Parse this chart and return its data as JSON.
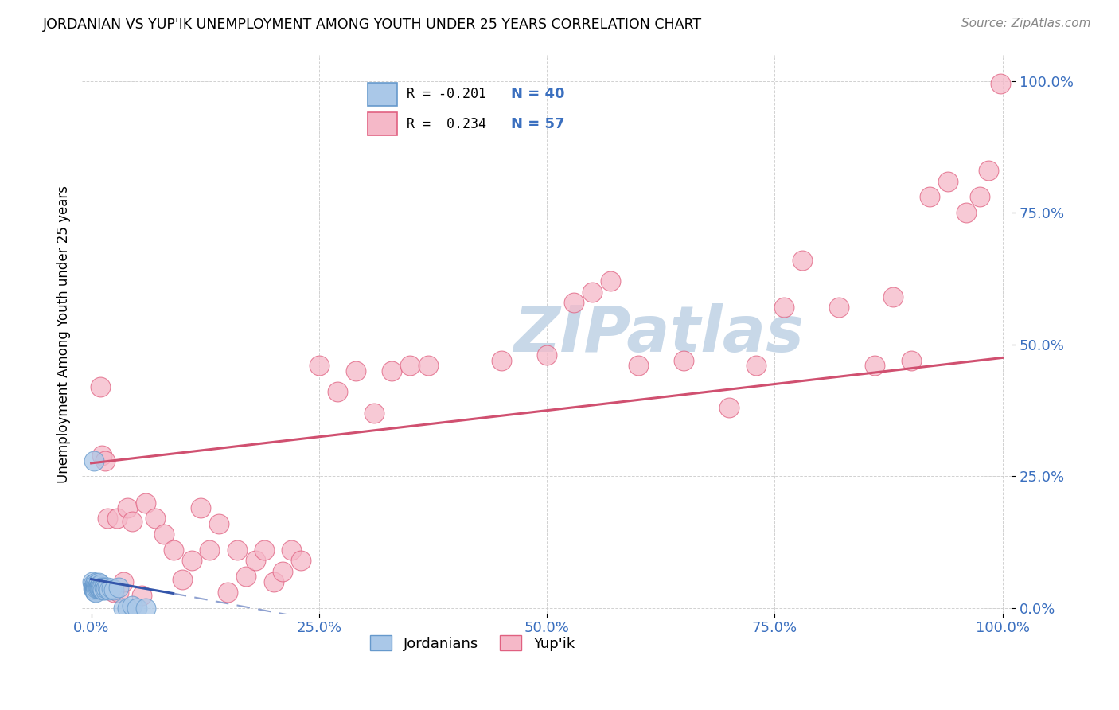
{
  "title": "JORDANIAN VS YUP'IK UNEMPLOYMENT AMONG YOUTH UNDER 25 YEARS CORRELATION CHART",
  "source": "Source: ZipAtlas.com",
  "ylabel": "Unemployment Among Youth under 25 years",
  "xlim": [
    -0.01,
    1.01
  ],
  "ylim": [
    -0.01,
    1.05
  ],
  "xticks": [
    0.0,
    0.25,
    0.5,
    0.75,
    1.0
  ],
  "yticks": [
    0.0,
    0.25,
    0.5,
    0.75,
    1.0
  ],
  "xticklabels": [
    "0.0%",
    "25.0%",
    "50.0%",
    "75.0%",
    "100.0%"
  ],
  "yticklabels": [
    "0.0%",
    "25.0%",
    "50.0%",
    "75.0%",
    "100.0%"
  ],
  "blue_face_color": "#aac8e8",
  "blue_edge_color": "#6699cc",
  "pink_face_color": "#f5b8c8",
  "pink_edge_color": "#e06080",
  "blue_line_color": "#3355aa",
  "pink_line_color": "#d05070",
  "watermark_color": "#c8d8e8",
  "blue_R": "-0.201",
  "blue_N": "40",
  "pink_R": "0.234",
  "pink_N": "57",
  "blue_points_x": [
    0.001,
    0.002,
    0.002,
    0.003,
    0.003,
    0.003,
    0.004,
    0.004,
    0.004,
    0.005,
    0.005,
    0.005,
    0.005,
    0.006,
    0.006,
    0.007,
    0.007,
    0.008,
    0.008,
    0.009,
    0.009,
    0.01,
    0.01,
    0.011,
    0.012,
    0.013,
    0.014,
    0.015,
    0.016,
    0.018,
    0.02,
    0.022,
    0.025,
    0.03,
    0.035,
    0.04,
    0.045,
    0.05,
    0.06,
    0.003
  ],
  "blue_points_y": [
    0.05,
    0.045,
    0.038,
    0.042,
    0.038,
    0.035,
    0.04,
    0.035,
    0.032,
    0.048,
    0.038,
    0.035,
    0.03,
    0.045,
    0.038,
    0.042,
    0.038,
    0.048,
    0.04,
    0.042,
    0.038,
    0.045,
    0.038,
    0.04,
    0.038,
    0.035,
    0.04,
    0.035,
    0.038,
    0.04,
    0.035,
    0.038,
    0.035,
    0.04,
    0.0,
    0.0,
    0.005,
    0.0,
    0.0,
    0.28
  ],
  "pink_points_x": [
    0.01,
    0.012,
    0.015,
    0.018,
    0.025,
    0.028,
    0.03,
    0.035,
    0.04,
    0.045,
    0.055,
    0.06,
    0.07,
    0.08,
    0.09,
    0.1,
    0.11,
    0.12,
    0.13,
    0.14,
    0.15,
    0.16,
    0.17,
    0.18,
    0.19,
    0.2,
    0.21,
    0.22,
    0.23,
    0.25,
    0.27,
    0.29,
    0.31,
    0.33,
    0.35,
    0.37,
    0.45,
    0.5,
    0.53,
    0.55,
    0.57,
    0.6,
    0.65,
    0.7,
    0.73,
    0.76,
    0.78,
    0.82,
    0.86,
    0.88,
    0.9,
    0.92,
    0.94,
    0.96,
    0.975,
    0.985,
    0.998
  ],
  "pink_points_y": [
    0.42,
    0.29,
    0.28,
    0.17,
    0.03,
    0.17,
    0.03,
    0.05,
    0.19,
    0.165,
    0.025,
    0.2,
    0.17,
    0.14,
    0.11,
    0.055,
    0.09,
    0.19,
    0.11,
    0.16,
    0.03,
    0.11,
    0.06,
    0.09,
    0.11,
    0.05,
    0.07,
    0.11,
    0.09,
    0.46,
    0.41,
    0.45,
    0.37,
    0.45,
    0.46,
    0.46,
    0.47,
    0.48,
    0.58,
    0.6,
    0.62,
    0.46,
    0.47,
    0.38,
    0.46,
    0.57,
    0.66,
    0.57,
    0.46,
    0.59,
    0.47,
    0.78,
    0.81,
    0.75,
    0.78,
    0.83,
    0.995
  ],
  "pink_line": [
    0.0,
    1.0,
    0.275,
    0.475
  ],
  "blue_line_solid": [
    0.0,
    0.09,
    0.055,
    0.028
  ],
  "blue_line_dash": [
    0.09,
    0.55,
    0.028,
    -0.12
  ]
}
